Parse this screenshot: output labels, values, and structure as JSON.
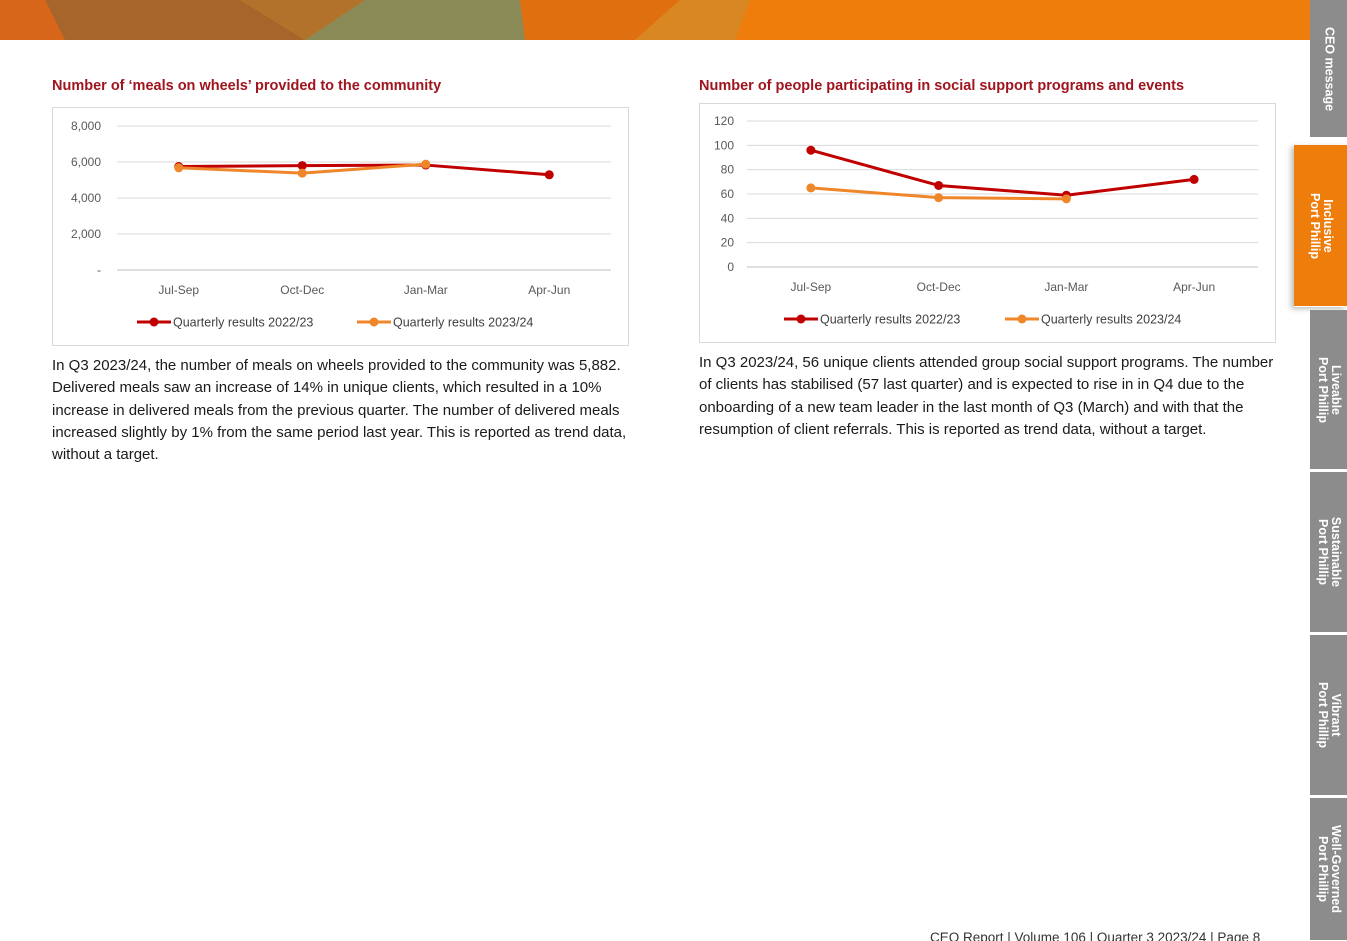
{
  "side_tabs": [
    {
      "label_lines": [
        "CEO message"
      ],
      "active": false
    },
    {
      "label_lines": [
        "Inclusive",
        "Port Phillip"
      ],
      "active": true
    },
    {
      "label_lines": [
        "Liveable",
        "Port Phillip"
      ],
      "active": false
    },
    {
      "label_lines": [
        "Sustainable",
        "Port Phillip"
      ],
      "active": false
    },
    {
      "label_lines": [
        "Vibrant",
        "Port Phillip"
      ],
      "active": false
    },
    {
      "label_lines": [
        "Well-Governed",
        "Port Phillip"
      ],
      "active": false
    }
  ],
  "colors": {
    "banner_orange": "#ee7d0c",
    "heading_red": "#a0141e",
    "series_2022_23": "#c00000",
    "series_2023_24": "#f0862a",
    "tab_grey": "#8c8c8c",
    "tab_active": "#ee7d0c"
  },
  "meals": {
    "heading": "Number of ‘meals on wheels’ provided to the community",
    "paragraph": "In Q3 2023/24, the number of meals on wheels provided to the community was 5,882. Delivered meals saw an increase of 14% in unique clients, which resulted in a 10% increase in delivered meals from the previous quarter. The number of delivered meals increased slightly by 1% from the same period last year. This is reported as trend data, without a target."
  },
  "social": {
    "heading": "Number of people participating in social support programs and events",
    "paragraph": "In Q3 2023/24, 56 unique clients attended group social support programs. The number of clients has stabilised (57 last quarter) and is expected to rise in in Q4 due to the onboarding of a new team leader in the last month of Q3 (March) and with that the resumption of client referrals. This is reported as trend data, without a target."
  },
  "chart_data": [
    {
      "type": "line",
      "title": "Number of ‘meals on wheels’ provided to the community",
      "categories": [
        "Jul-Sep",
        "Oct-Dec",
        "Jan-Mar",
        "Apr-Jun"
      ],
      "y_ticks": [
        "-",
        "2,000",
        "4,000",
        "6,000",
        "8,000"
      ],
      "ylim": [
        0,
        8000
      ],
      "grid": true,
      "legend_position": "bottom",
      "series": [
        {
          "name": "Quarterly results 2022/23",
          "values": [
            5750,
            5800,
            5830,
            5290
          ]
        },
        {
          "name": "Quarterly results 2023/24",
          "values": [
            5680,
            5380,
            5882,
            null
          ]
        }
      ]
    },
    {
      "type": "line",
      "title": "Number of people participating in social support programs and events",
      "categories": [
        "Jul-Sep",
        "Oct-Dec",
        "Jan-Mar",
        "Apr-Jun"
      ],
      "y_ticks": [
        "0",
        "20",
        "40",
        "60",
        "80",
        "100",
        "120"
      ],
      "ylim": [
        0,
        120
      ],
      "grid": true,
      "legend_position": "bottom",
      "series": [
        {
          "name": "Quarterly results 2022/23",
          "values": [
            96,
            67,
            59,
            72
          ]
        },
        {
          "name": "Quarterly results 2023/24",
          "values": [
            65,
            57,
            56,
            null
          ]
        }
      ]
    }
  ],
  "footer": "CEO Report | Volume 106 | Quarter 3 2023/24 | Page 8"
}
